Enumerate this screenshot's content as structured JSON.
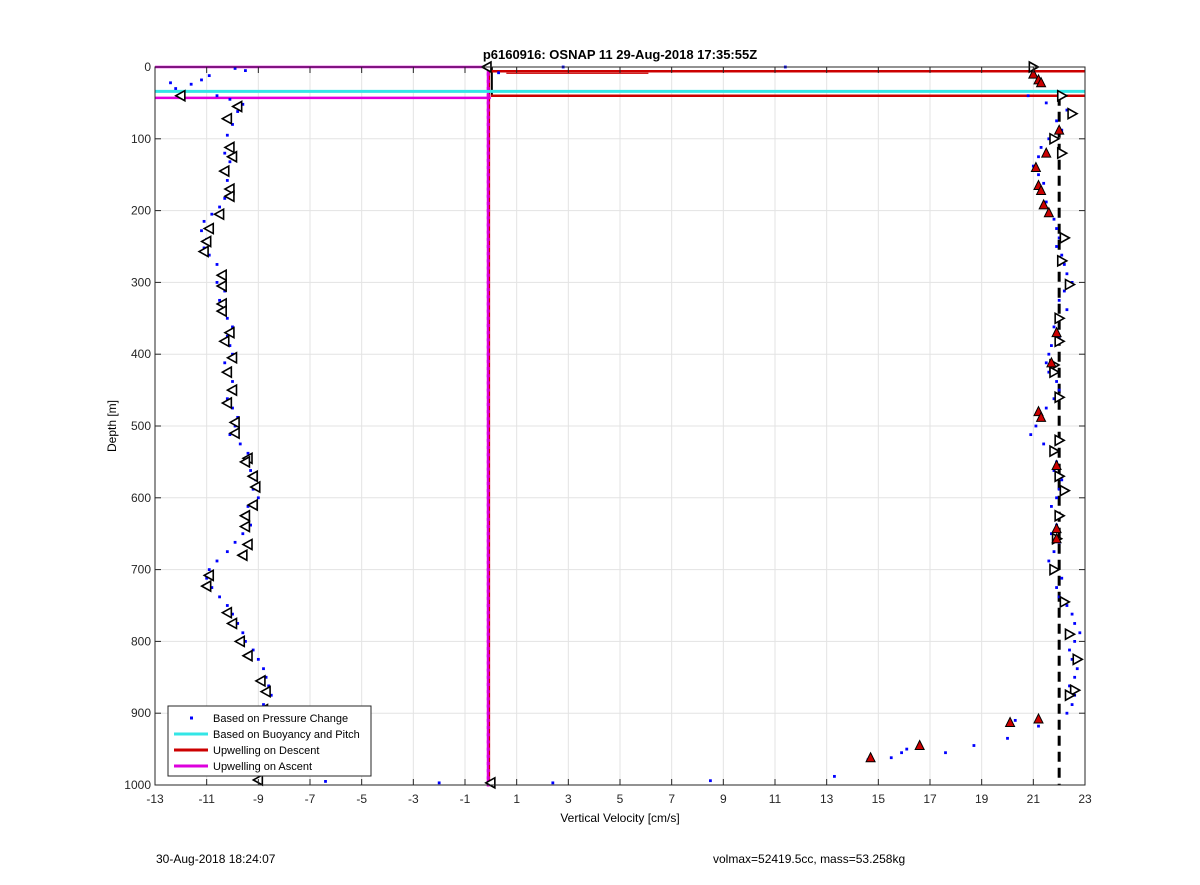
{
  "footer": {
    "timestamp": "30-Aug-2018 18:24:07",
    "volmax_mass": "volmax=52419.5cc, mass=53.258kg"
  },
  "chart_data": {
    "type": "scatter",
    "title": "p6160916: OSNAP 11 29-Aug-2018 17:35:55Z",
    "xlabel": "Vertical Velocity [cm/s]",
    "ylabel": "Depth [m]",
    "xlim": [
      -13,
      23
    ],
    "ylim": [
      0,
      1000
    ],
    "y_reversed": true,
    "grid": true,
    "x_ticks": [
      -13,
      -11,
      -9,
      -7,
      -5,
      -3,
      -1,
      1,
      3,
      5,
      7,
      9,
      11,
      13,
      15,
      17,
      19,
      21,
      23
    ],
    "y_ticks": [
      0,
      100,
      200,
      300,
      400,
      500,
      600,
      700,
      800,
      900,
      1000
    ],
    "legend_position": "bottom-left",
    "legend": [
      {
        "label": "Based on Pressure Change",
        "color": "#0000ff",
        "marker": "dot"
      },
      {
        "label": "Based on Buoyancy and Pitch",
        "color": "#33e6e6",
        "marker": "line"
      },
      {
        "label": "Upwelling on Descent",
        "color": "#cc0000",
        "marker": "line"
      },
      {
        "label": "Upwelling on Ascent",
        "color": "#dd00dd",
        "marker": "line"
      }
    ],
    "series": [
      {
        "name": "Based on Pressure Change",
        "note_color": "#0000ff",
        "points": [
          [
            -12.4,
            22
          ],
          [
            -12.2,
            30
          ],
          [
            -12.0,
            38
          ],
          [
            -11.6,
            24
          ],
          [
            -11.2,
            18
          ],
          [
            -10.9,
            12
          ],
          [
            -10.6,
            40
          ],
          [
            -10.1,
            45
          ],
          [
            -9.6,
            52
          ],
          [
            -9.8,
            62
          ],
          [
            -10.2,
            70
          ],
          [
            -10.0,
            80
          ],
          [
            -10.2,
            95
          ],
          [
            -10.1,
            110
          ],
          [
            -10.3,
            120
          ],
          [
            -10.1,
            132
          ],
          [
            -10.4,
            145
          ],
          [
            -10.2,
            158
          ],
          [
            -10.1,
            170
          ],
          [
            -10.3,
            183
          ],
          [
            -10.5,
            195
          ],
          [
            -10.8,
            205
          ],
          [
            -11.1,
            215
          ],
          [
            -11.2,
            228
          ],
          [
            -11.0,
            240
          ],
          [
            -11.1,
            252
          ],
          [
            -10.9,
            262
          ],
          [
            -10.6,
            275
          ],
          [
            -10.4,
            288
          ],
          [
            -10.6,
            300
          ],
          [
            -10.3,
            312
          ],
          [
            -10.5,
            325
          ],
          [
            -10.4,
            338
          ],
          [
            -10.2,
            350
          ],
          [
            -10.0,
            362
          ],
          [
            -10.2,
            375
          ],
          [
            -10.1,
            388
          ],
          [
            -10.0,
            400
          ],
          [
            -10.3,
            412
          ],
          [
            -10.1,
            425
          ],
          [
            -10.0,
            438
          ],
          [
            -9.9,
            450
          ],
          [
            -10.2,
            462
          ],
          [
            -10.0,
            475
          ],
          [
            -9.8,
            488
          ],
          [
            -9.9,
            500
          ],
          [
            -10.1,
            512
          ],
          [
            -9.7,
            525
          ],
          [
            -9.4,
            538
          ],
          [
            -9.6,
            550
          ],
          [
            -9.3,
            562
          ],
          [
            -9.1,
            575
          ],
          [
            -9.2,
            588
          ],
          [
            -9.0,
            600
          ],
          [
            -9.4,
            612
          ],
          [
            -9.5,
            625
          ],
          [
            -9.3,
            638
          ],
          [
            -9.6,
            650
          ],
          [
            -9.9,
            662
          ],
          [
            -10.2,
            675
          ],
          [
            -10.6,
            688
          ],
          [
            -10.9,
            700
          ],
          [
            -11.0,
            712
          ],
          [
            -10.8,
            725
          ],
          [
            -10.5,
            738
          ],
          [
            -10.2,
            750
          ],
          [
            -10.0,
            762
          ],
          [
            -9.8,
            775
          ],
          [
            -9.6,
            788
          ],
          [
            -9.5,
            800
          ],
          [
            -9.2,
            812
          ],
          [
            -9.0,
            825
          ],
          [
            -8.8,
            838
          ],
          [
            -8.7,
            850
          ],
          [
            -8.6,
            862
          ],
          [
            -8.5,
            875
          ],
          [
            -8.8,
            888
          ],
          [
            -8.9,
            900
          ],
          [
            -9.1,
            912
          ],
          [
            -9.2,
            925
          ],
          [
            -9.0,
            938
          ],
          [
            -9.1,
            950
          ],
          [
            -8.9,
            962
          ],
          [
            -9.0,
            975
          ],
          [
            -8.9,
            988
          ],
          [
            -6.4,
            995
          ],
          [
            -2.0,
            997
          ],
          [
            2.4,
            997
          ],
          [
            8.5,
            994
          ],
          [
            13.3,
            988
          ],
          [
            14.6,
            965
          ],
          [
            15.5,
            962
          ],
          [
            15.9,
            955
          ],
          [
            16.1,
            950
          ],
          [
            17.6,
            955
          ],
          [
            18.7,
            945
          ],
          [
            20.0,
            935
          ],
          [
            21.2,
            918
          ],
          [
            20.3,
            910
          ],
          [
            21.0,
            12
          ],
          [
            21.3,
            22
          ],
          [
            20.8,
            40
          ],
          [
            21.5,
            50
          ],
          [
            22.3,
            60
          ],
          [
            21.9,
            75
          ],
          [
            22.1,
            88
          ],
          [
            21.6,
            100
          ],
          [
            21.3,
            112
          ],
          [
            21.2,
            125
          ],
          [
            21.0,
            138
          ],
          [
            21.2,
            150
          ],
          [
            21.4,
            162
          ],
          [
            21.3,
            175
          ],
          [
            21.5,
            188
          ],
          [
            21.6,
            200
          ],
          [
            21.8,
            212
          ],
          [
            21.9,
            225
          ],
          [
            22.0,
            238
          ],
          [
            21.9,
            250
          ],
          [
            22.1,
            262
          ],
          [
            22.2,
            275
          ],
          [
            22.3,
            288
          ],
          [
            22.5,
            300
          ],
          [
            22.2,
            312
          ],
          [
            22.0,
            325
          ],
          [
            22.3,
            338
          ],
          [
            22.1,
            350
          ],
          [
            21.8,
            362
          ],
          [
            22.0,
            375
          ],
          [
            21.7,
            388
          ],
          [
            21.6,
            400
          ],
          [
            21.5,
            412
          ],
          [
            21.6,
            425
          ],
          [
            21.9,
            438
          ],
          [
            22.0,
            450
          ],
          [
            21.8,
            462
          ],
          [
            21.5,
            475
          ],
          [
            21.3,
            488
          ],
          [
            21.1,
            500
          ],
          [
            20.9,
            512
          ],
          [
            21.4,
            525
          ],
          [
            21.7,
            538
          ],
          [
            21.9,
            550
          ],
          [
            21.8,
            562
          ],
          [
            22.1,
            575
          ],
          [
            22.0,
            588
          ],
          [
            21.9,
            600
          ],
          [
            21.7,
            612
          ],
          [
            22.1,
            625
          ],
          [
            21.9,
            638
          ],
          [
            21.7,
            650
          ],
          [
            22.0,
            662
          ],
          [
            21.8,
            675
          ],
          [
            21.6,
            688
          ],
          [
            21.8,
            700
          ],
          [
            22.1,
            712
          ],
          [
            21.9,
            725
          ],
          [
            22.0,
            738
          ],
          [
            22.3,
            750
          ],
          [
            22.5,
            762
          ],
          [
            22.6,
            775
          ],
          [
            22.8,
            788
          ],
          [
            22.6,
            800
          ],
          [
            22.4,
            812
          ],
          [
            22.5,
            825
          ],
          [
            22.7,
            838
          ],
          [
            22.6,
            850
          ],
          [
            22.4,
            862
          ],
          [
            22.6,
            875
          ],
          [
            22.5,
            888
          ],
          [
            22.3,
            900
          ],
          [
            0.3,
            8
          ],
          [
            2.8,
            0
          ],
          [
            11.4,
            0
          ],
          [
            -9.5,
            5
          ],
          [
            -9.9,
            2
          ]
        ]
      },
      {
        "name": "Based on Buoyancy and Pitch",
        "note_color": "#000000",
        "points": [
          [
            -0.15,
            0
          ],
          [
            -12.0,
            40
          ],
          [
            -9.8,
            55
          ],
          [
            -10.2,
            72
          ],
          [
            -10.1,
            112
          ],
          [
            -10.0,
            125
          ],
          [
            -10.3,
            145
          ],
          [
            -10.1,
            170
          ],
          [
            -10.1,
            180
          ],
          [
            -10.5,
            205
          ],
          [
            -10.9,
            225
          ],
          [
            -11.0,
            243
          ],
          [
            -11.1,
            257
          ],
          [
            -10.4,
            290
          ],
          [
            -10.4,
            305
          ],
          [
            -10.4,
            330
          ],
          [
            -10.4,
            340
          ],
          [
            -10.1,
            370
          ],
          [
            -10.3,
            382
          ],
          [
            -10.0,
            405
          ],
          [
            -10.2,
            425
          ],
          [
            -10.0,
            450
          ],
          [
            -10.2,
            468
          ],
          [
            -9.9,
            495
          ],
          [
            -9.9,
            510
          ],
          [
            -9.4,
            545
          ],
          [
            -9.5,
            550
          ],
          [
            -9.2,
            570
          ],
          [
            -9.1,
            585
          ],
          [
            -9.2,
            610
          ],
          [
            -9.5,
            625
          ],
          [
            -9.5,
            640
          ],
          [
            -9.4,
            665
          ],
          [
            -9.6,
            680
          ],
          [
            -10.9,
            708
          ],
          [
            -11.0,
            723
          ],
          [
            -10.2,
            760
          ],
          [
            -10.0,
            775
          ],
          [
            -9.7,
            800
          ],
          [
            -9.4,
            820
          ],
          [
            -8.9,
            855
          ],
          [
            -8.7,
            870
          ],
          [
            -8.8,
            895
          ],
          [
            -9.3,
            925
          ],
          [
            -9.1,
            945
          ],
          [
            -8.9,
            960
          ],
          [
            -9.0,
            993
          ],
          [
            22.1,
            40
          ],
          [
            22.5,
            65
          ],
          [
            21.8,
            100
          ],
          [
            22.1,
            120
          ],
          [
            22.2,
            238
          ],
          [
            22.1,
            270
          ],
          [
            22.4,
            303
          ],
          [
            22.0,
            350
          ],
          [
            22.0,
            382
          ],
          [
            21.8,
            415
          ],
          [
            21.8,
            425
          ],
          [
            22.0,
            460
          ],
          [
            22.0,
            520
          ],
          [
            21.8,
            535
          ],
          [
            22.0,
            570
          ],
          [
            22.2,
            590
          ],
          [
            22.0,
            625
          ],
          [
            21.9,
            657
          ],
          [
            21.8,
            700
          ],
          [
            22.2,
            745
          ],
          [
            22.4,
            790
          ],
          [
            22.7,
            825
          ],
          [
            22.6,
            868
          ],
          [
            22.4,
            875
          ],
          [
            21.0,
            0
          ],
          [
            0.0,
            997
          ]
        ]
      },
      {
        "name": "Upwelling on Descent",
        "note_color": "#cc0000",
        "points": [
          [
            21.0,
            10
          ],
          [
            21.2,
            18
          ],
          [
            21.3,
            22
          ],
          [
            22.0,
            88
          ],
          [
            21.5,
            120
          ],
          [
            21.1,
            140
          ],
          [
            21.2,
            165
          ],
          [
            21.3,
            172
          ],
          [
            21.4,
            192
          ],
          [
            21.6,
            203
          ],
          [
            21.9,
            370
          ],
          [
            21.7,
            412
          ],
          [
            21.2,
            480
          ],
          [
            21.3,
            488
          ],
          [
            21.9,
            555
          ],
          [
            21.9,
            643
          ],
          [
            21.9,
            657
          ],
          [
            21.2,
            908
          ],
          [
            20.1,
            913
          ],
          [
            16.6,
            945
          ],
          [
            14.7,
            962
          ]
        ]
      }
    ],
    "reference_lines": {
      "vertical_dashed_black_x": 22.0,
      "vertical_magenta_x": -0.1,
      "vertical_black_x": 0.0,
      "vertical_red_x": -0.05,
      "horizontal_magenta_y": [
        0,
        43
      ],
      "horizontal_cyan_y": 34,
      "horizontal_red_y": [
        6,
        40
      ],
      "horizontal_red_short_y": 6,
      "horizontal_red_short_xrange": [
        0.6,
        6.1
      ]
    }
  }
}
